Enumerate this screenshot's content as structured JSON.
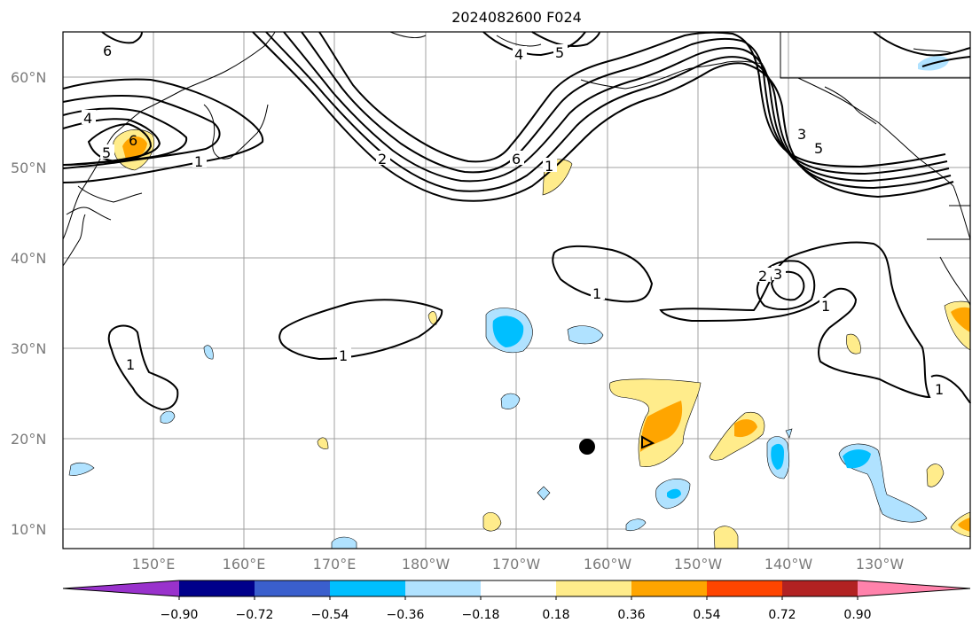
{
  "title": "2024082600 F024",
  "map": {
    "lat_labels": [
      "60°N",
      "50°N",
      "40°N",
      "30°N",
      "20°N",
      "10°N"
    ],
    "lon_labels": [
      "150°E",
      "160°E",
      "170°E",
      "180°W",
      "170°W",
      "160°W",
      "150°W",
      "140°W",
      "130°W"
    ],
    "extent": {
      "lon_min": 140,
      "lon_max": 240,
      "lat_min": 8,
      "lat_max": 65
    }
  },
  "contours": {
    "levels_labeled": [
      "1",
      "1",
      "1",
      "1",
      "1",
      "1",
      "2",
      "3",
      "1",
      "6",
      "5",
      "4",
      "6",
      "5",
      "2",
      "3",
      "4",
      "5",
      "6"
    ],
    "color": "#000000"
  },
  "storm_marker": {
    "lat": 19.2,
    "lon": -162.3,
    "color": "#000000"
  },
  "colorbar": {
    "labels": [
      "−0.90",
      "−0.72",
      "−0.54",
      "−0.36",
      "−0.18",
      "0.18",
      "0.36",
      "0.54",
      "0.72",
      "0.90"
    ],
    "colors": [
      "#9932cc",
      "#00008b",
      "#3a5fcd",
      "#00bfff",
      "#b0e2ff",
      "#ffffff",
      "#ffec8b",
      "#ffa500",
      "#ff4500",
      "#b22222",
      "#ff82ab"
    ]
  }
}
